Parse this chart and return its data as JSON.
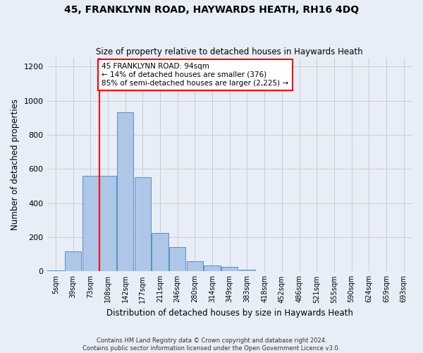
{
  "title1": "45, FRANKLYNN ROAD, HAYWARDS HEATH, RH16 4DQ",
  "title2": "Size of property relative to detached houses in Haywards Heath",
  "xlabel": "Distribution of detached houses by size in Haywards Heath",
  "ylabel": "Number of detached properties",
  "footer1": "Contains HM Land Registry data © Crown copyright and database right 2024.",
  "footer2": "Contains public sector information licensed under the Open Government Licence v3.0.",
  "bin_labels": [
    "5sqm",
    "39sqm",
    "73sqm",
    "108sqm",
    "142sqm",
    "177sqm",
    "211sqm",
    "246sqm",
    "280sqm",
    "314sqm",
    "349sqm",
    "383sqm",
    "418sqm",
    "452sqm",
    "486sqm",
    "521sqm",
    "555sqm",
    "590sqm",
    "624sqm",
    "659sqm",
    "693sqm"
  ],
  "bar_values": [
    5,
    115,
    560,
    560,
    930,
    550,
    225,
    140,
    60,
    35,
    25,
    10,
    0,
    0,
    0,
    0,
    0,
    0,
    0,
    0,
    0
  ],
  "bar_color": "#aec6e8",
  "bar_edge_color": "#5a8fc0",
  "vline_index": 3,
  "vline_color": "red",
  "annotation_text": "45 FRANKLYNN ROAD: 94sqm\n← 14% of detached houses are smaller (376)\n85% of semi-detached houses are larger (2,225) →",
  "annotation_box_color": "white",
  "annotation_box_edge_color": "red",
  "ylim": [
    0,
    1250
  ],
  "yticks": [
    0,
    200,
    400,
    600,
    800,
    1000,
    1200
  ],
  "grid_color": "#cccccc",
  "bg_color": "#e8eef7",
  "plot_bg_color": "#e8eef7"
}
